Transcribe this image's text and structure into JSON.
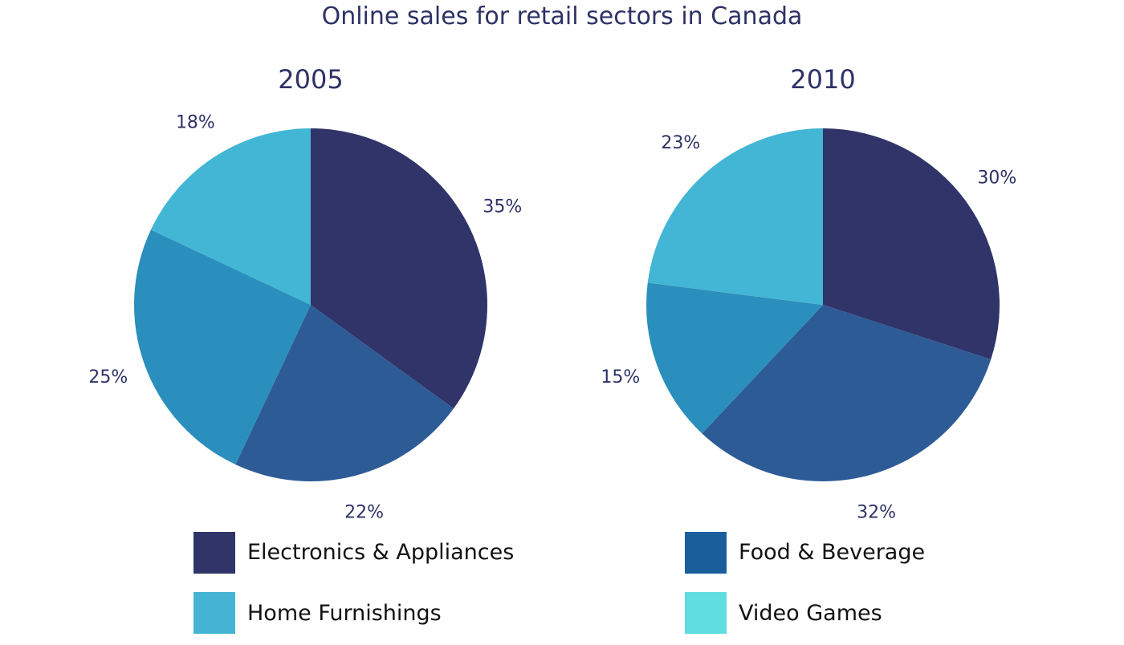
{
  "colors": {
    "text": "#2d3266",
    "electronics": "#303469",
    "food": "#2d5b96",
    "home": "#42b6d4",
    "video": "#2a8fbd",
    "legend_food": "#1a5e9c",
    "legend_home": "#44b4d2",
    "legend_video": "#5fdde0",
    "background": "#ffffff"
  },
  "chart_data": {
    "type": "pie",
    "title": "Online sales for retail sectors in Canada",
    "legend": [
      {
        "label": "Electronics & Appliances",
        "color_key": "electronics"
      },
      {
        "label": "Food & Beverage",
        "color_key": "legend_food"
      },
      {
        "label": "Home Furnishings",
        "color_key": "legend_home"
      },
      {
        "label": "Video Games",
        "color_key": "legend_video"
      }
    ],
    "charts": [
      {
        "title": "2005",
        "slices": [
          {
            "value": 35,
            "label": "35%",
            "color_key": "electronics"
          },
          {
            "value": 22,
            "label": "22%",
            "color_key": "food"
          },
          {
            "value": 25,
            "label": "25%",
            "color_key": "video"
          },
          {
            "value": 18,
            "label": "18%",
            "color_key": "home"
          }
        ]
      },
      {
        "title": "2010",
        "slices": [
          {
            "value": 30,
            "label": "30%",
            "color_key": "electronics"
          },
          {
            "value": 32,
            "label": "32%",
            "color_key": "food"
          },
          {
            "value": 15,
            "label": "15%",
            "color_key": "video"
          },
          {
            "value": 23,
            "label": "23%",
            "color_key": "home"
          }
        ]
      }
    ]
  }
}
